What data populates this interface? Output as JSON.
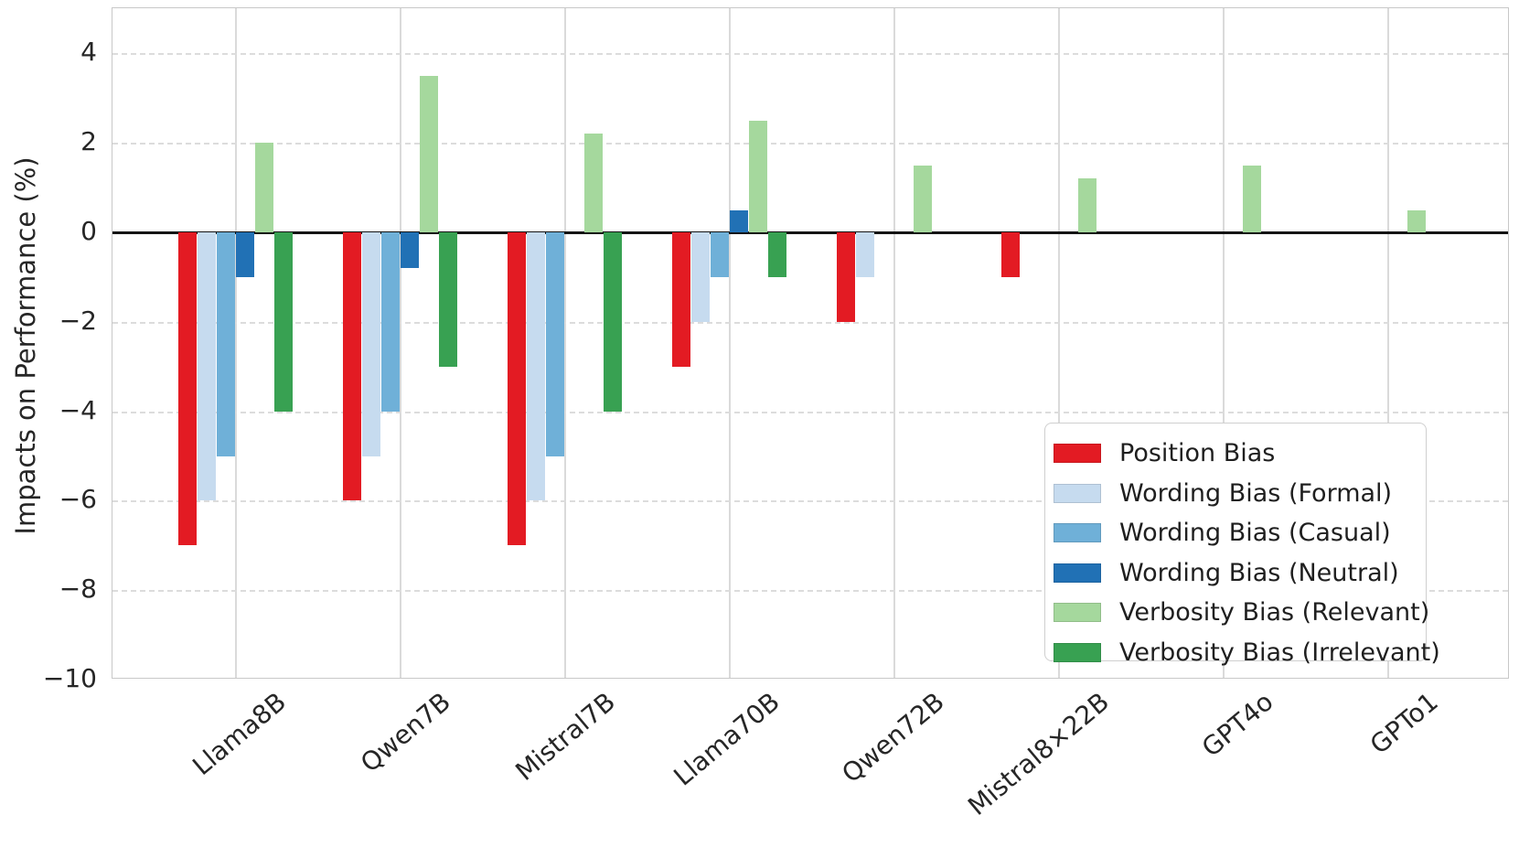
{
  "chart_data": {
    "type": "bar",
    "title": "",
    "xlabel": "",
    "ylabel": "Impacts on Performance (%)",
    "ylim": [
      -10,
      5
    ],
    "yticks": [
      4,
      2,
      0,
      -2,
      -4,
      -6,
      -8,
      -10
    ],
    "grid": "horizontal dashed + vertical solid, light gray",
    "legend_position": "lower right",
    "categories": [
      "Llama8B",
      "Qwen7B",
      "Mistral7B",
      "Llama70B",
      "Qwen72B",
      "Mistral8×22B",
      "GPT4o",
      "GPTo1"
    ],
    "series": [
      {
        "name": "Position Bias",
        "color": "#e31b23",
        "values": [
          -7,
          -6,
          -7,
          -3,
          -2,
          -1,
          0,
          0
        ]
      },
      {
        "name": "Wording Bias (Formal)",
        "color": "#c6dbef",
        "values": [
          -6,
          -5,
          -6,
          -2,
          -1,
          0,
          0,
          0
        ]
      },
      {
        "name": "Wording Bias (Casual)",
        "color": "#6fb0d8",
        "values": [
          -5,
          -4,
          -5,
          -1,
          0,
          0,
          0,
          0
        ]
      },
      {
        "name": "Wording Bias (Neutral)",
        "color": "#2171b5",
        "values": [
          -1,
          -0.8,
          0,
          0.5,
          0,
          0,
          0,
          0
        ]
      },
      {
        "name": "Verbosity Bias (Relevant)",
        "color": "#a5d89d",
        "values": [
          2,
          3.5,
          2.2,
          2.5,
          1.5,
          1.2,
          1.5,
          0.5
        ]
      },
      {
        "name": "Verbosity Bias (Irrelevant)",
        "color": "#38a152",
        "values": [
          -4,
          -3,
          -4,
          -1,
          0,
          0,
          0,
          0
        ]
      }
    ],
    "axis_colors": {
      "zero_line": "#141414",
      "spine": "#c8c8c8",
      "gridline": "#dcdcdc",
      "text": "#262626"
    }
  }
}
